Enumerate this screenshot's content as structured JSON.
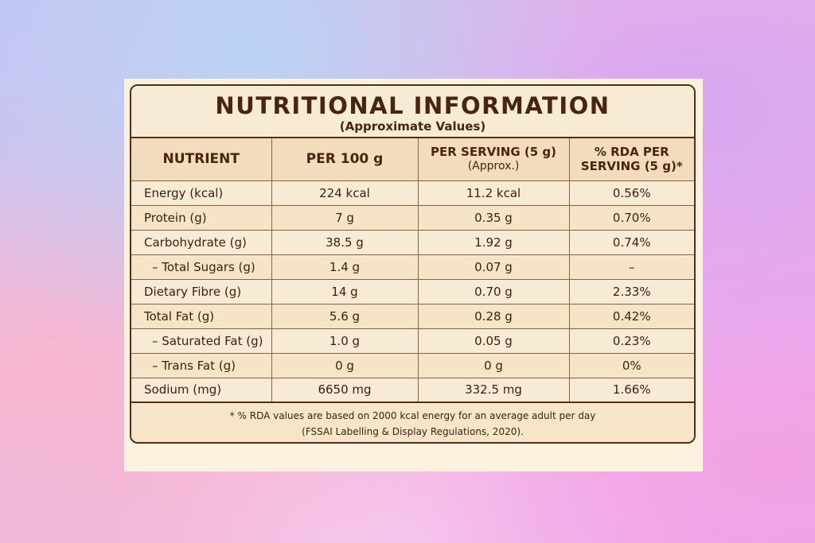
{
  "title": "NUTRITIONAL INFORMATION",
  "subtitle": "(Approximate Values)",
  "headers": {
    "nutrient": "NUTRIENT",
    "per100": "PER 100 g",
    "serving_main": "PER SERVING (5 g)",
    "serving_sub": "(Approx.)",
    "rda_line1": "% RDA PER",
    "rda_line2": "SERVING (5 g)*"
  },
  "rows": [
    {
      "nutrient": "Energy (kcal)",
      "per100": "224 kcal",
      "serving": "11.2 kcal",
      "rda": "0.56%"
    },
    {
      "nutrient": "Protein (g)",
      "per100": "7 g",
      "serving": "0.35 g",
      "rda": "0.70%"
    },
    {
      "nutrient": "Carbohydrate (g)",
      "per100": "38.5 g",
      "serving": "1.92 g",
      "rda": "0.74%"
    },
    {
      "nutrient": "– Total Sugars (g)",
      "per100": "1.4 g",
      "serving": "0.07 g",
      "rda": "–"
    },
    {
      "nutrient": "Dietary Fibre (g)",
      "per100": "14 g",
      "serving": "0.70 g",
      "rda": "2.33%"
    },
    {
      "nutrient": "Total Fat (g)",
      "per100": "5.6 g",
      "serving": "0.28 g",
      "rda": "0.42%"
    },
    {
      "nutrient": "– Saturated Fat (g)",
      "per100": "1.0 g",
      "serving": "0.05 g",
      "rda": "0.23%"
    },
    {
      "nutrient": "– Trans Fat (g)",
      "per100": "0 g",
      "serving": "0 g",
      "rda": "0%"
    },
    {
      "nutrient": "Sodium (mg)",
      "per100": "6650 mg",
      "serving": "332.5 mg",
      "rda": "1.66%"
    }
  ],
  "footnote": {
    "line1": "* % RDA values are based on 2000 kcal energy for an average adult per day",
    "line2": "(FSSAI Labelling & Display Regulations, 2020)."
  }
}
